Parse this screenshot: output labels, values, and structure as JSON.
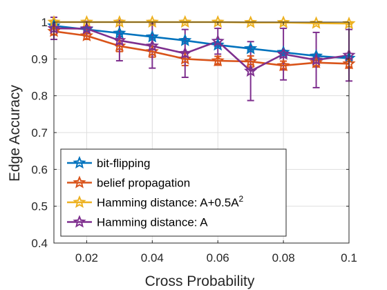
{
  "chart_data": {
    "type": "line",
    "xlabel": "Cross Probability",
    "ylabel": "Edge Accuracy",
    "xlim": [
      0.01,
      0.1
    ],
    "ylim": [
      0.4,
      1.0
    ],
    "x_ticks": [
      0.02,
      0.04,
      0.06,
      0.08,
      0.1
    ],
    "x_tick_labels": [
      "0.02",
      "0.04",
      "0.06",
      "0.08",
      "0.1"
    ],
    "y_ticks": [
      0.4,
      0.5,
      0.6,
      0.7,
      0.8,
      0.9,
      1.0
    ],
    "y_tick_labels": [
      "0.4",
      "0.5",
      "0.6",
      "0.7",
      "0.8",
      "0.9",
      "1"
    ],
    "grid": true,
    "legend_position": "bottom-left",
    "marker": "star",
    "x": [
      0.01,
      0.02,
      0.03,
      0.04,
      0.05,
      0.06,
      0.07,
      0.08,
      0.09,
      0.1
    ],
    "series": [
      {
        "name": "bit-flipping",
        "color": "#0072BD",
        "values": [
          0.99,
          0.98,
          0.97,
          0.96,
          0.95,
          0.938,
          0.928,
          0.918,
          0.908,
          0.902
        ],
        "errors": [
          0.004,
          0.004,
          0.004,
          0.004,
          0.004,
          0.004,
          0.004,
          0.004,
          0.004,
          0.004
        ]
      },
      {
        "name": "belief propagation",
        "color": "#D95319",
        "values": [
          0.975,
          0.963,
          0.935,
          0.92,
          0.9,
          0.895,
          0.893,
          0.882,
          0.89,
          0.887
        ],
        "errors": [
          0.01,
          0.01,
          0.015,
          0.015,
          0.018,
          0.012,
          0.015,
          0.012,
          0.012,
          0.012
        ]
      },
      {
        "name": "Hamming distance: A+0.5A",
        "name_superscript": "2",
        "color": "#EDB120",
        "values": [
          1.0,
          1.0,
          1.0,
          1.0,
          1.0,
          1.0,
          0.999,
          0.999,
          0.997,
          0.996
        ],
        "errors": [
          0.002,
          0.002,
          0.002,
          0.002,
          0.002,
          0.002,
          0.002,
          0.002,
          0.002,
          0.002
        ]
      },
      {
        "name": "Hamming distance: A",
        "color": "#7E2F8E",
        "values": [
          0.983,
          0.982,
          0.95,
          0.935,
          0.915,
          0.948,
          0.867,
          0.913,
          0.897,
          0.91
        ],
        "errors": [
          0.03,
          0.02,
          0.055,
          0.06,
          0.065,
          0.035,
          0.08,
          0.07,
          0.075,
          0.07
        ]
      }
    ]
  }
}
